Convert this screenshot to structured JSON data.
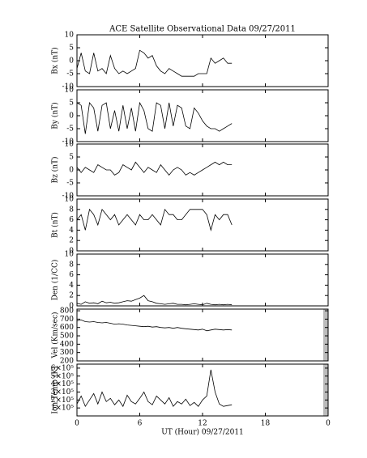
{
  "chart_data": [
    {
      "type": "line",
      "title": "ACE Satellite Observational Data   09/27/2011",
      "ylabel": "Bx (nT)",
      "xlim": [
        0,
        24
      ],
      "ylim": [
        -10,
        10
      ],
      "yticks": [
        -10,
        -5,
        0,
        5,
        10
      ],
      "x": [
        0,
        0.4,
        0.8,
        1.2,
        1.6,
        2,
        2.4,
        2.8,
        3.2,
        3.6,
        4,
        4.4,
        4.8,
        5.2,
        5.6,
        6,
        6.4,
        6.8,
        7.2,
        7.6,
        8,
        8.4,
        8.8,
        9.2,
        9.6,
        10,
        10.4,
        10.8,
        11.2,
        11.6,
        12,
        12.4,
        12.8,
        13.2,
        13.6,
        14,
        14.4,
        14.8
      ],
      "series": [
        {
          "color": "#000000",
          "values": [
            -3,
            3,
            -4,
            -5,
            3,
            -4,
            -3,
            -5,
            2,
            -3,
            -5,
            -4,
            -5,
            -4,
            -3,
            4,
            3,
            1,
            2,
            -2,
            -4,
            -5,
            -3,
            -4,
            -5,
            -6,
            -6,
            -6,
            -6,
            -5,
            -5,
            -5,
            1,
            -1,
            0,
            1,
            -1,
            -1
          ]
        }
      ]
    },
    {
      "type": "line",
      "ylabel": "By (nT)",
      "xlim": [
        0,
        24
      ],
      "ylim": [
        -10,
        10
      ],
      "yticks": [
        -10,
        -5,
        0,
        5,
        10
      ],
      "x": [
        0,
        0.4,
        0.8,
        1.2,
        1.6,
        2,
        2.4,
        2.8,
        3.2,
        3.6,
        4,
        4.4,
        4.8,
        5.2,
        5.6,
        6,
        6.4,
        6.8,
        7.2,
        7.6,
        8,
        8.4,
        8.8,
        9.2,
        9.6,
        10,
        10.4,
        10.8,
        11.2,
        11.6,
        12,
        12.4,
        12.8,
        13.2,
        13.6,
        14,
        14.4,
        14.8
      ],
      "series": [
        {
          "color": "#000000",
          "values": [
            5,
            4,
            -7,
            5,
            3,
            -6,
            4,
            5,
            -5,
            2,
            -6,
            4,
            -5,
            3,
            -6,
            5,
            2,
            -5,
            -6,
            5,
            4,
            -5,
            5,
            -4,
            4,
            3,
            -4,
            -5,
            3,
            1,
            -2,
            -4,
            -5,
            -5,
            -6,
            -5,
            -4,
            -3
          ]
        }
      ]
    },
    {
      "type": "line",
      "ylabel": "Bz (nT)",
      "xlim": [
        0,
        24
      ],
      "ylim": [
        -10,
        10
      ],
      "yticks": [
        -10,
        -5,
        0,
        5,
        10
      ],
      "x": [
        0,
        0.4,
        0.8,
        1.2,
        1.6,
        2,
        2.4,
        2.8,
        3.2,
        3.6,
        4,
        4.4,
        4.8,
        5.2,
        5.6,
        6,
        6.4,
        6.8,
        7.2,
        7.6,
        8,
        8.4,
        8.8,
        9.2,
        9.6,
        10,
        10.4,
        10.8,
        11.2,
        11.6,
        12,
        12.4,
        12.8,
        13.2,
        13.6,
        14,
        14.4,
        14.8
      ],
      "series": [
        {
          "color": "#000000",
          "values": [
            1,
            -1,
            1,
            0,
            -1,
            2,
            1,
            0,
            0,
            -2,
            -1,
            2,
            1,
            0,
            3,
            1,
            -1,
            1,
            0,
            -1,
            2,
            0,
            -2,
            0,
            1,
            0,
            -2,
            -1,
            -2,
            -1,
            0,
            1,
            2,
            3,
            2,
            3,
            2,
            2
          ]
        }
      ]
    },
    {
      "type": "line",
      "ylabel": "Bt (nT)",
      "xlim": [
        0,
        24
      ],
      "ylim": [
        0,
        10
      ],
      "yticks": [
        0,
        2,
        4,
        6,
        8,
        10
      ],
      "x": [
        0,
        0.4,
        0.8,
        1.2,
        1.6,
        2,
        2.4,
        2.8,
        3.2,
        3.6,
        4,
        4.4,
        4.8,
        5.2,
        5.6,
        6,
        6.4,
        6.8,
        7.2,
        7.6,
        8,
        8.4,
        8.8,
        9.2,
        9.6,
        10,
        10.4,
        10.8,
        11.2,
        11.6,
        12,
        12.4,
        12.8,
        13.2,
        13.6,
        14,
        14.4,
        14.8
      ],
      "series": [
        {
          "color": "#000000",
          "values": [
            6,
            7,
            4,
            8,
            7,
            5,
            8,
            7,
            6,
            7,
            5,
            6,
            7,
            6,
            5,
            7,
            6,
            6,
            7,
            6,
            5,
            8,
            7,
            7,
            6,
            6,
            7,
            8,
            8,
            8,
            8,
            7,
            4,
            7,
            6,
            7,
            7,
            5
          ]
        }
      ]
    },
    {
      "type": "line",
      "ylabel": "Den (1/CC)",
      "xlim": [
        0,
        24
      ],
      "ylim": [
        0,
        10
      ],
      "yticks": [
        0,
        2,
        4,
        6,
        8,
        10
      ],
      "x": [
        0,
        0.4,
        0.8,
        1.2,
        1.6,
        2,
        2.4,
        2.8,
        3.2,
        3.6,
        4,
        4.4,
        4.8,
        5.2,
        5.6,
        6,
        6.4,
        6.8,
        7.2,
        7.6,
        8,
        8.4,
        8.8,
        9.2,
        9.6,
        10,
        10.4,
        10.8,
        11.2,
        11.6,
        12,
        12.4,
        12.8,
        13.2,
        13.6,
        14,
        14.4,
        14.8
      ],
      "series": [
        {
          "color": "#000000",
          "values": [
            0.5,
            0.3,
            0.8,
            0.5,
            0.6,
            0.4,
            0.9,
            0.6,
            0.7,
            0.5,
            0.6,
            0.8,
            1,
            0.9,
            1.2,
            1.5,
            2,
            1,
            0.8,
            0.5,
            0.4,
            0.3,
            0.4,
            0.5,
            0.3,
            0.3,
            0.2,
            0.3,
            0.4,
            0.3,
            0.2,
            0.5,
            0.3,
            0.2,
            0.3,
            0.2,
            0.3,
            0.2
          ]
        }
      ]
    },
    {
      "type": "line",
      "ylabel": "Vel (Km/sec)",
      "xlim": [
        0,
        24
      ],
      "ylim": [
        200,
        820
      ],
      "yticks": [
        200,
        300,
        400,
        500,
        600,
        700,
        800
      ],
      "x": [
        0,
        0.4,
        0.8,
        1.2,
        1.6,
        2,
        2.4,
        2.8,
        3.2,
        3.6,
        4,
        4.4,
        4.8,
        5.2,
        5.6,
        6,
        6.4,
        6.8,
        7.2,
        7.6,
        8,
        8.4,
        8.8,
        9.2,
        9.6,
        10,
        10.4,
        10.8,
        11.2,
        11.6,
        12,
        12.4,
        12.8,
        13.2,
        13.6,
        14,
        14.4,
        14.8
      ],
      "series": [
        {
          "color": "#000000",
          "values": [
            680,
            690,
            670,
            665,
            670,
            660,
            655,
            660,
            650,
            640,
            645,
            640,
            630,
            625,
            620,
            615,
            610,
            615,
            605,
            610,
            600,
            595,
            600,
            590,
            600,
            590,
            585,
            580,
            575,
            570,
            580,
            560,
            570,
            580,
            575,
            570,
            575,
            570
          ]
        }
      ]
    },
    {
      "type": "line",
      "ylabel": "Ion Temp (K)",
      "xlabel": "UT (Hour)  09/27/2011",
      "xlim": [
        0,
        24
      ],
      "ylim": [
        0,
        650000
      ],
      "yticks": [
        {
          "value": 100000,
          "label": "1×10⁵"
        },
        {
          "value": 200000,
          "label": "2×10⁵"
        },
        {
          "value": 300000,
          "label": "3×10⁵"
        },
        {
          "value": 400000,
          "label": "4×10⁵"
        },
        {
          "value": 500000,
          "label": "5×10⁵"
        },
        {
          "value": 600000,
          "label": "6×10⁵"
        }
      ],
      "xticks": [
        0,
        6,
        12,
        18,
        {
          "value": 24,
          "label": "0"
        }
      ],
      "x": [
        0,
        0.4,
        0.8,
        1.2,
        1.6,
        2,
        2.4,
        2.8,
        3.2,
        3.6,
        4,
        4.4,
        4.8,
        5.2,
        5.6,
        6,
        6.4,
        6.8,
        7.2,
        7.6,
        8,
        8.4,
        8.8,
        9.2,
        9.6,
        10,
        10.4,
        10.8,
        11.2,
        11.6,
        12,
        12.4,
        12.8,
        13.2,
        13.6,
        14,
        14.4,
        14.8
      ],
      "series": [
        {
          "color": "#000000",
          "values": [
            150000,
            250000,
            120000,
            200000,
            280000,
            150000,
            300000,
            180000,
            220000,
            140000,
            200000,
            120000,
            260000,
            180000,
            150000,
            220000,
            300000,
            180000,
            140000,
            250000,
            200000,
            150000,
            230000,
            120000,
            180000,
            150000,
            210000,
            130000,
            170000,
            120000,
            200000,
            250000,
            580000,
            300000,
            150000,
            120000,
            130000,
            140000
          ]
        }
      ]
    }
  ]
}
